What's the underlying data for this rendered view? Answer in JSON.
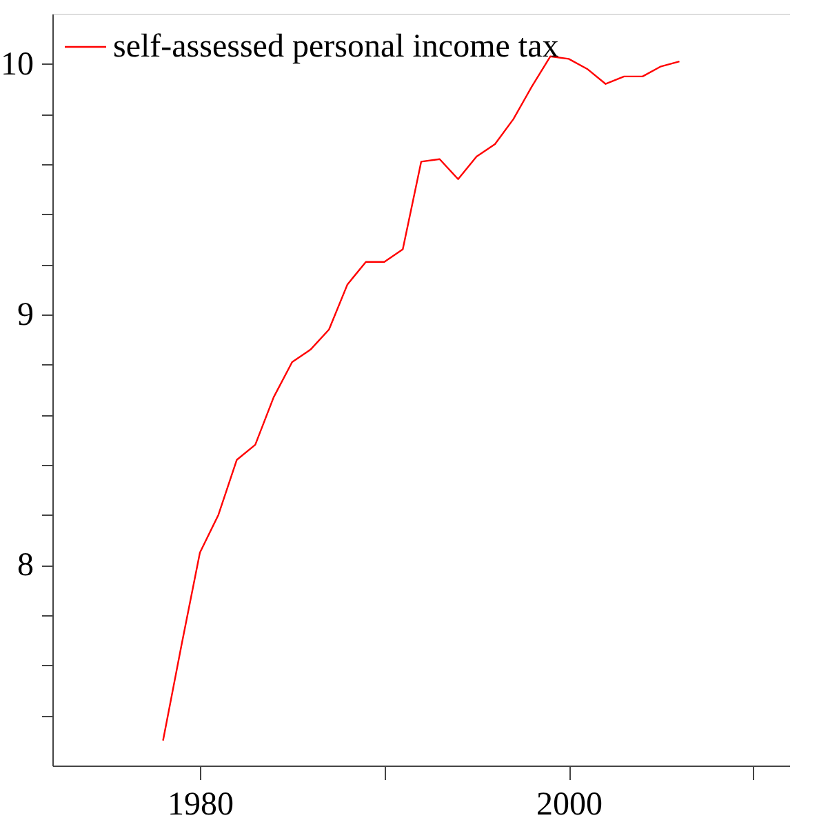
{
  "chart_data": {
    "type": "line",
    "legend": "top left",
    "grid": false,
    "marker": "none",
    "line_style": "solid",
    "xlim": [
      1972,
      2012
    ],
    "xticks": [
      1980,
      {
        "value": 1990,
        "label": null
      },
      2000,
      {
        "value": 2010,
        "label": null
      }
    ],
    "ylim": [
      7.2,
      10.2
    ],
    "yticks": [
      {
        "value": 7.4,
        "label": null
      },
      {
        "value": 7.6,
        "label": null
      },
      {
        "value": 7.8,
        "label": null
      },
      8,
      {
        "value": 8.2,
        "label": null
      },
      {
        "value": 8.4,
        "label": null
      },
      {
        "value": 8.6,
        "label": null
      },
      {
        "value": 8.8,
        "label": null
      },
      9,
      {
        "value": 9.2,
        "label": null
      },
      {
        "value": 9.4,
        "label": null
      },
      {
        "value": 9.6,
        "label": null
      },
      {
        "value": 9.8,
        "label": null
      },
      10
    ],
    "x": [
      1978,
      1979,
      1980,
      1981,
      1982,
      1983,
      1984,
      1985,
      1986,
      1987,
      1988,
      1989,
      1990,
      1991,
      1992,
      1993,
      1994,
      1995,
      1996,
      1997,
      1998,
      1999,
      2000,
      2001,
      2002,
      2003,
      2004,
      2005,
      2006
    ],
    "series": [
      {
        "name": "self-assessed personal income tax",
        "color": "#ff0000",
        "values": [
          7.3,
          7.68,
          8.05,
          8.2,
          8.42,
          8.48,
          8.67,
          8.81,
          8.86,
          8.94,
          9.12,
          9.21,
          9.21,
          9.26,
          9.61,
          9.62,
          9.54,
          9.63,
          9.68,
          9.78,
          9.91,
          10.03,
          10.02,
          9.98,
          9.92,
          9.95,
          9.95,
          9.99,
          10.01
        ]
      }
    ]
  }
}
